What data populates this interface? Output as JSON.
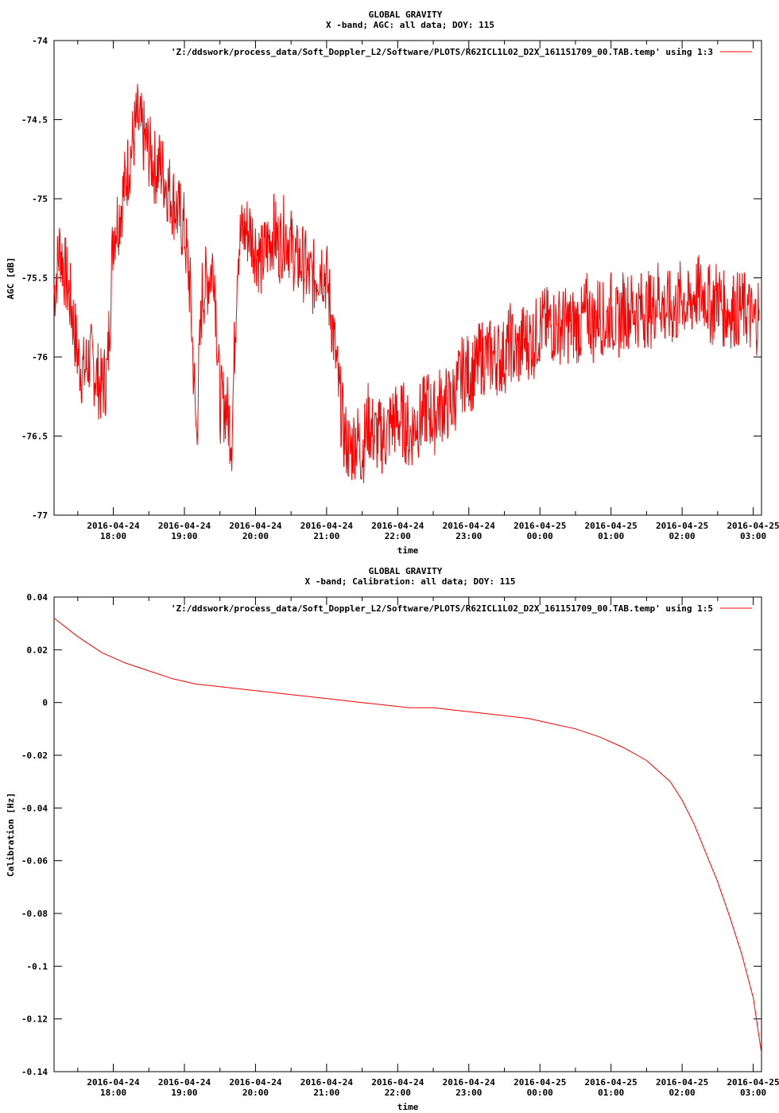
{
  "chart_data": [
    {
      "type": "line",
      "title": "GLOBAL GRAVITY",
      "subtitle": "X -band; AGC: all data; DOY: 115",
      "xlabel": "time",
      "ylabel": "AGC [dB]",
      "ylim": [
        -77,
        -74
      ],
      "yticks": [
        "-74",
        "-74.5",
        "-75",
        "-75.5",
        "-76",
        "-76.5",
        "-77"
      ],
      "xlim": [
        "2016-04-24 17:10",
        "2016-04-25 03:07"
      ],
      "xticks": [
        [
          "2016-04-24",
          "18:00"
        ],
        [
          "2016-04-24",
          "19:00"
        ],
        [
          "2016-04-24",
          "20:00"
        ],
        [
          "2016-04-24",
          "21:00"
        ],
        [
          "2016-04-24",
          "22:00"
        ],
        [
          "2016-04-24",
          "23:00"
        ],
        [
          "2016-04-25",
          "00:00"
        ],
        [
          "2016-04-25",
          "01:00"
        ],
        [
          "2016-04-25",
          "02:00"
        ],
        [
          "2016-04-25",
          "03:00"
        ]
      ],
      "legend": "'Z:/ddswork/process_data/Soft_Doppler_L2/Software/PLOTS/R62ICL1L02_D2X_161151709_00.TAB.temp' using 1:3",
      "legend_position": "top-right",
      "color": "#ff0000",
      "grid": false,
      "series": [
        {
          "x": [
            "17:10",
            "17:15",
            "17:20",
            "17:25",
            "17:30",
            "17:35",
            "17:40",
            "17:45",
            "17:50",
            "17:55",
            "18:00",
            "18:05",
            "18:10",
            "18:15",
            "18:20",
            "18:25",
            "18:30",
            "18:35",
            "18:40",
            "18:45",
            "18:50",
            "18:55",
            "19:00",
            "19:05",
            "19:10",
            "19:15",
            "19:20",
            "19:25",
            "19:30",
            "19:35",
            "19:40",
            "19:45",
            "19:50",
            "19:55",
            "20:00",
            "20:05",
            "20:10",
            "20:15",
            "20:20",
            "20:25",
            "20:30",
            "20:35",
            "20:40",
            "20:45",
            "20:50",
            "20:55",
            "21:00",
            "21:05",
            "21:10",
            "21:15",
            "21:20",
            "21:25",
            "21:30",
            "21:35",
            "21:40",
            "21:45",
            "21:50",
            "21:55",
            "22:00",
            "22:05",
            "22:10",
            "22:15",
            "22:20",
            "22:25",
            "22:30",
            "22:35",
            "22:40",
            "22:45",
            "22:50",
            "22:55",
            "23:00",
            "23:05",
            "23:10",
            "23:15",
            "23:20",
            "23:25",
            "23:30",
            "23:35",
            "23:40",
            "23:45",
            "23:50",
            "23:55",
            "00:00",
            "00:05",
            "00:10",
            "00:15",
            "00:20",
            "00:25",
            "00:30",
            "00:35",
            "00:40",
            "00:45",
            "00:50",
            "00:55",
            "01:00",
            "01:05",
            "01:10",
            "01:15",
            "01:20",
            "01:25",
            "01:30",
            "01:35",
            "01:40",
            "01:45",
            "01:50",
            "01:55",
            "02:00",
            "02:05",
            "02:10",
            "02:15",
            "02:20",
            "02:25",
            "02:30",
            "02:35",
            "02:40",
            "02:45",
            "02:50",
            "02:55",
            "03:00",
            "03:05"
          ],
          "values": [
            -75.6,
            -75.3,
            -75.5,
            -75.7,
            -76.0,
            -76.1,
            -76.0,
            -76.1,
            -76.2,
            -76.1,
            -75.2,
            -75.1,
            -74.9,
            -74.7,
            -74.5,
            -74.6,
            -74.7,
            -74.8,
            -74.8,
            -74.9,
            -75.0,
            -75.1,
            -75.2,
            -75.6,
            -76.5,
            -75.6,
            -75.5,
            -75.4,
            -76.3,
            -76.3,
            -76.5,
            -75.3,
            -75.2,
            -75.2,
            -75.3,
            -75.4,
            -75.3,
            -75.2,
            -75.3,
            -75.2,
            -75.3,
            -75.4,
            -75.4,
            -75.5,
            -75.5,
            -75.4,
            -75.5,
            -75.8,
            -76.2,
            -76.5,
            -76.6,
            -76.5,
            -76.6,
            -76.4,
            -76.5,
            -76.5,
            -76.5,
            -76.4,
            -76.4,
            -76.4,
            -76.5,
            -76.4,
            -76.4,
            -76.3,
            -76.4,
            -76.3,
            -76.3,
            -76.3,
            -76.2,
            -76.1,
            -76.1,
            -76.1,
            -76.0,
            -76.0,
            -76.0,
            -76.0,
            -76.0,
            -75.9,
            -76.0,
            -75.9,
            -75.9,
            -75.9,
            -75.8,
            -75.8,
            -75.8,
            -75.8,
            -75.8,
            -75.8,
            -75.8,
            -75.8,
            -75.7,
            -75.8,
            -75.7,
            -75.8,
            -75.7,
            -75.8,
            -75.7,
            -75.7,
            -75.7,
            -75.7,
            -75.7,
            -75.7,
            -75.6,
            -75.7,
            -75.7,
            -75.7,
            -75.6,
            -75.7,
            -75.6,
            -75.6,
            -75.6,
            -75.7,
            -75.6,
            -75.7,
            -75.7,
            -75.7,
            -75.7,
            -75.7,
            -75.8,
            -75.7
          ]
        }
      ]
    },
    {
      "type": "line",
      "title": "GLOBAL GRAVITY",
      "subtitle": "X -band; Calibration: all data; DOY: 115",
      "xlabel": "time",
      "ylabel": "Calibration [Hz]",
      "ylim": [
        -0.14,
        0.04
      ],
      "yticks": [
        "0.04",
        "0.02",
        "0",
        "-0.02",
        "-0.04",
        "-0.06",
        "-0.08",
        "-0.1",
        "-0.12",
        "-0.14"
      ],
      "xlim": [
        "2016-04-24 17:10",
        "2016-04-25 03:07"
      ],
      "xticks": [
        [
          "2016-04-24",
          "18:00"
        ],
        [
          "2016-04-24",
          "19:00"
        ],
        [
          "2016-04-24",
          "20:00"
        ],
        [
          "2016-04-24",
          "21:00"
        ],
        [
          "2016-04-24",
          "22:00"
        ],
        [
          "2016-04-24",
          "23:00"
        ],
        [
          "2016-04-25",
          "00:00"
        ],
        [
          "2016-04-25",
          "01:00"
        ],
        [
          "2016-04-25",
          "02:00"
        ],
        [
          "2016-04-25",
          "03:00"
        ]
      ],
      "legend": "'Z:/ddswork/process_data/Soft_Doppler_L2/Software/PLOTS/R62ICL1L02_D2X_161151709_00.TAB.temp' using 1:5",
      "legend_position": "top-right",
      "color": "#ff0000",
      "grid": false,
      "series": [
        {
          "x": [
            "17:10",
            "17:30",
            "17:50",
            "18:10",
            "18:30",
            "18:50",
            "19:10",
            "19:30",
            "19:50",
            "20:10",
            "20:30",
            "20:50",
            "21:10",
            "21:30",
            "21:50",
            "22:10",
            "22:30",
            "22:50",
            "23:10",
            "23:30",
            "23:50",
            "00:10",
            "00:30",
            "00:50",
            "01:10",
            "01:30",
            "01:50",
            "02:00",
            "02:10",
            "02:20",
            "02:30",
            "02:40",
            "02:50",
            "03:00",
            "03:07"
          ],
          "values": [
            0.032,
            0.025,
            0.019,
            0.015,
            0.012,
            0.009,
            0.007,
            0.006,
            0.005,
            0.004,
            0.003,
            0.002,
            0.001,
            0.0,
            -0.001,
            -0.002,
            -0.002,
            -0.003,
            -0.004,
            -0.005,
            -0.006,
            -0.008,
            -0.01,
            -0.013,
            -0.017,
            -0.022,
            -0.03,
            -0.037,
            -0.046,
            -0.057,
            -0.068,
            -0.081,
            -0.095,
            -0.112,
            -0.133
          ]
        }
      ]
    }
  ]
}
